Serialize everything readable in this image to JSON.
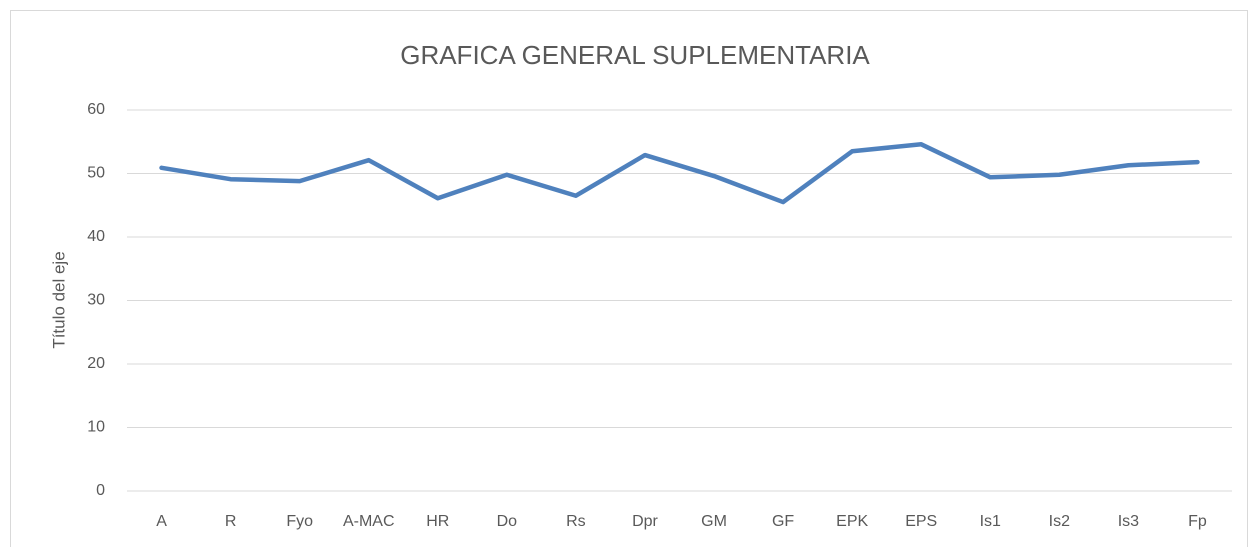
{
  "chart_data": {
    "type": "line",
    "title": "GRAFICA GENERAL  SUPLEMENTARIA",
    "y_label": "Título del eje",
    "categories": [
      "A",
      "R",
      "Fyo",
      "A-MAC",
      "HR",
      "Do",
      "Rs",
      "Dpr",
      "GM",
      "GF",
      "EPK",
      "EPS",
      "Is1",
      "Is2",
      "Is3",
      "Fp"
    ],
    "values": [
      50.9,
      49.1,
      48.8,
      52.1,
      46.1,
      49.8,
      46.5,
      52.9,
      49.6,
      45.5,
      53.5,
      54.6,
      49.4,
      49.8,
      51.3,
      51.8
    ],
    "color": "#4f81bd",
    "ylim": [
      0,
      60
    ],
    "yticks": [
      0,
      10,
      20,
      30,
      40,
      50,
      60
    ],
    "grid": true
  }
}
